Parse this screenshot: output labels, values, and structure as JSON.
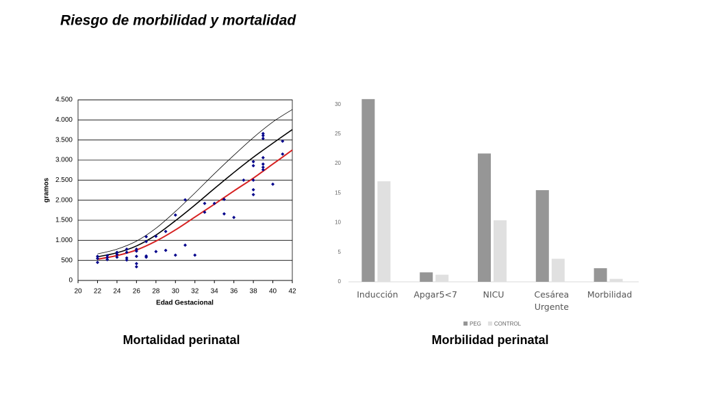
{
  "title": "Riesgo de morbilidad y mortalidad",
  "chart_data": [
    {
      "type": "scatter",
      "caption": "Mortalidad perinatal",
      "xlabel": "Edad Gestacional",
      "ylabel": "gramos",
      "xlim": [
        20,
        42
      ],
      "ylim": [
        0,
        4500
      ],
      "xticks": [
        20,
        22,
        24,
        26,
        28,
        30,
        32,
        34,
        36,
        38,
        40,
        42
      ],
      "yticks": [
        0,
        500,
        {
          "value": 1000,
          "label": "1.000"
        },
        {
          "value": 1500,
          "label": "1.500"
        },
        {
          "value": 2000,
          "label": "2.000"
        },
        {
          "value": 2500,
          "label": "2.500"
        },
        {
          "value": 3000,
          "label": "3.000"
        },
        {
          "value": 3500,
          "label": "3.500"
        },
        {
          "value": 4000,
          "label": "4.000"
        },
        {
          "value": 4500,
          "label": "4.500"
        }
      ],
      "grid": true,
      "points": {
        "color": "#00008b",
        "x": [
          22,
          22,
          22,
          23,
          23,
          23,
          24,
          24,
          24,
          25,
          25,
          25,
          25,
          26,
          26,
          26,
          26,
          26,
          27,
          27,
          27,
          27,
          28,
          28,
          29,
          29,
          30,
          30,
          31,
          31,
          32,
          33,
          33,
          34,
          35,
          35,
          36,
          37,
          38,
          38,
          38,
          38,
          38,
          39,
          39,
          39,
          39,
          39,
          39,
          39,
          40,
          41,
          41
        ],
        "values": [
          450,
          550,
          600,
          520,
          570,
          620,
          580,
          650,
          700,
          510,
          560,
          700,
          780,
          340,
          420,
          600,
          730,
          780,
          580,
          610,
          970,
          1090,
          720,
          1100,
          750,
          1220,
          630,
          1630,
          880,
          2010,
          630,
          1700,
          1920,
          1920,
          1660,
          2020,
          1570,
          2500,
          2140,
          2260,
          2500,
          2860,
          2960,
          2760,
          2820,
          2900,
          3060,
          3540,
          3610,
          3660,
          2400,
          3150,
          3470
        ]
      },
      "curve_x": [
        22,
        24,
        26,
        28,
        30,
        32,
        34,
        36,
        38,
        40,
        42
      ],
      "curves": [
        {
          "color": "#d62020",
          "width": 2,
          "values": [
            530,
            620,
            760,
            980,
            1260,
            1580,
            1900,
            2230,
            2550,
            2900,
            3250
          ]
        },
        {
          "color": "#000000",
          "width": 1.6,
          "values": [
            590,
            690,
            860,
            1130,
            1490,
            1880,
            2290,
            2690,
            3070,
            3420,
            3760
          ]
        },
        {
          "color": "#000000",
          "width": 0.8,
          "values": [
            660,
            780,
            980,
            1300,
            1720,
            2180,
            2660,
            3120,
            3560,
            3950,
            4260
          ]
        }
      ]
    },
    {
      "type": "bar",
      "caption": "Morbilidad perinatal",
      "categories": [
        "Inducción",
        "Apgar5<7",
        "NICU",
        "Cesárea Urgente",
        "Morbilidad"
      ],
      "ylim": [
        0,
        31
      ],
      "yticks": [
        0,
        5,
        10,
        15,
        20,
        25,
        30
      ],
      "grid": false,
      "legend": "bottom",
      "series": [
        {
          "name": "PEG",
          "color": "#969696",
          "values": [
            30.9,
            1.6,
            21.7,
            15.5,
            2.3
          ]
        },
        {
          "name": "CONTROL",
          "color": "#e0e0e0",
          "values": [
            17,
            1.2,
            10.4,
            3.9,
            0.5
          ]
        }
      ]
    }
  ]
}
